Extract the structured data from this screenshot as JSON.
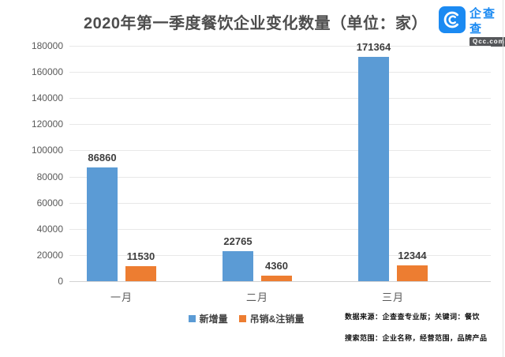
{
  "header": {
    "title": "2020年第一季度餐饮企业变化数量（单位：家）",
    "logo": {
      "name": "企查查",
      "domain": "Qcc.com",
      "brand_color": "#1b8af2",
      "tag_bg": "#55575a"
    }
  },
  "chart_data": {
    "type": "bar",
    "title": "2020年第一季度餐饮企业变化数量（单位：家）",
    "categories": [
      "一月",
      "二月",
      "三月"
    ],
    "series": [
      {
        "name": "新增量",
        "color": "#5B9BD5",
        "values": [
          86860,
          22765,
          171364
        ]
      },
      {
        "name": "吊销&注销量",
        "color": "#ED7D31",
        "values": [
          11530,
          4360,
          12344
        ]
      }
    ],
    "xlabel": "",
    "ylabel": "",
    "ylim": [
      0,
      180000
    ],
    "ytick_step": 20000,
    "yticks": [
      0,
      20000,
      40000,
      60000,
      80000,
      100000,
      120000,
      140000,
      160000,
      180000
    ],
    "grid": true,
    "value_labels": true,
    "legend_position": "bottom-center"
  },
  "footnotes": {
    "line1": "数据来源：企查查专业版；关键词：餐饮",
    "line2": "搜索范围：企业名称，经营范围，品牌产品"
  },
  "colors": {
    "background": "#ffffff",
    "title_text": "#4d4d4d",
    "axis_text": "#595959",
    "gridline": "#e8e8e8"
  }
}
